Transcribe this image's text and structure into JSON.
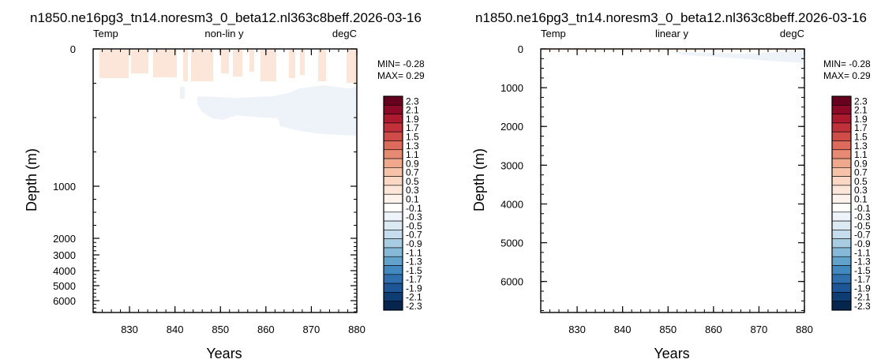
{
  "colorbar": {
    "levels": [
      "2.3",
      "2.1",
      "1.9",
      "1.7",
      "1.5",
      "1.3",
      "1.1",
      "0.9",
      "0.7",
      "0.5",
      "0.3",
      "0.1",
      "-0.1",
      "-0.3",
      "-0.5",
      "-0.7",
      "-0.9",
      "-1.1",
      "-1.3",
      "-1.5",
      "-1.7",
      "-1.9",
      "-2.1",
      "-2.3"
    ],
    "colors": [
      "#67001f",
      "#8c0a28",
      "#ab1a2e",
      "#c0313a",
      "#cf4c49",
      "#dc6b5c",
      "#e68a73",
      "#f0a88d",
      "#f6c3a9",
      "#fad8c5",
      "#fce6d9",
      "#fdf3ec",
      "#ffffff",
      "#edf3f8",
      "#dbe9f2",
      "#c4dcec",
      "#a8cce2",
      "#86b9d8",
      "#62a3cc",
      "#4189bf",
      "#2f6fad",
      "#1d5695",
      "#0d3d73",
      "#06264f"
    ]
  },
  "chart_data": [
    {
      "type": "heatmap",
      "title": "n1850.ne16pg3_tn14.noresm3_0_beta12.nl363c8beff.2026-03-16",
      "left_label": "Temp",
      "center_label": "non-lin y",
      "right_label": "degC",
      "xlabel": "Years",
      "ylabel": "Depth (m)",
      "xlim": [
        822,
        880
      ],
      "x_ticks": [
        "830",
        "840",
        "850",
        "860",
        "870",
        "880"
      ],
      "y_scale": "nonlinear",
      "y_ticks": [
        "0",
        "1000",
        "2000",
        "3000",
        "4000",
        "5000",
        "6000"
      ],
      "min_label": "MIN= -0.28",
      "max_label": "MAX=  0.29",
      "contour_interval": 0.2,
      "field_summary": [
        {
          "x_range": [
            822,
            880
          ],
          "depth_range": [
            0,
            250
          ],
          "value": 0.2,
          "note": "weak warm anomaly bands near surface"
        },
        {
          "x_range": [
            840,
            880
          ],
          "depth_range": [
            300,
            650
          ],
          "value": -0.2,
          "note": "weak cool anomaly at depth, strongest after 860"
        }
      ]
    },
    {
      "type": "heatmap",
      "title": "n1850.ne16pg3_tn14.noresm3_0_beta12.nl363c8beff.2026-03-16",
      "left_label": "Temp",
      "center_label": "linear y",
      "right_label": "degC",
      "xlabel": "Years",
      "ylabel": "Depth (m)",
      "xlim": [
        822,
        880
      ],
      "x_ticks": [
        "830",
        "840",
        "850",
        "860",
        "870",
        "880"
      ],
      "y_scale": "linear",
      "ylim": [
        0,
        6800
      ],
      "y_ticks": [
        "0",
        "1000",
        "2000",
        "3000",
        "4000",
        "5000",
        "6000"
      ],
      "min_label": "MIN= -0.28",
      "max_label": "MAX=  0.29",
      "contour_interval": 0.2,
      "field_summary": [
        {
          "x_range": [
            822,
            880
          ],
          "depth_range": [
            0,
            60
          ],
          "value": 0.2,
          "note": "thin warm layer at surface"
        },
        {
          "x_range": [
            850,
            880
          ],
          "depth_range": [
            60,
            350
          ],
          "value": -0.2,
          "note": "weak cool anomaly near top"
        }
      ]
    }
  ]
}
